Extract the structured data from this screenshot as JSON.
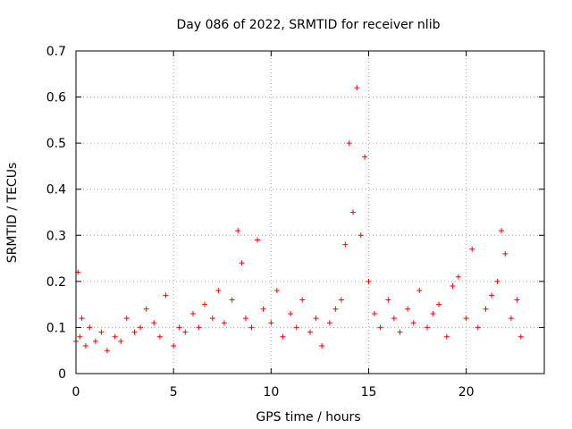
{
  "chart_data": {
    "type": "scatter",
    "title": "Day 086 of 2022, SRMTID for receiver nlib",
    "xlabel": "GPS time / hours",
    "ylabel": "SRMTID / TECUs",
    "xlim": [
      0,
      24
    ],
    "ylim": [
      0,
      0.7
    ],
    "xticks": [
      0,
      5,
      10,
      15,
      20
    ],
    "yticks": [
      0,
      0.1,
      0.2,
      0.3,
      0.4,
      0.5,
      0.6,
      0.7
    ],
    "xtick_labels": [
      "0",
      "5",
      "10",
      "15",
      "20"
    ],
    "ytick_labels": [
      "0",
      "0.1",
      "0.2",
      "0.3",
      "0.4",
      "0.5",
      "0.6",
      "0.7"
    ],
    "grid": true,
    "marker": "+",
    "color": "#ff0000",
    "series": [
      {
        "name": "SRMTID",
        "x": [
          0.0,
          0.1,
          0.2,
          0.3,
          0.5,
          0.7,
          1.0,
          1.3,
          1.6,
          2.0,
          2.3,
          2.6,
          3.0,
          3.3,
          3.6,
          4.0,
          4.3,
          4.6,
          5.0,
          5.3,
          5.6,
          6.0,
          6.3,
          6.6,
          7.0,
          7.3,
          7.6,
          8.0,
          8.3,
          8.5,
          8.7,
          9.0,
          9.3,
          9.6,
          10.0,
          10.3,
          10.6,
          11.0,
          11.3,
          11.6,
          12.0,
          12.3,
          12.6,
          13.0,
          13.3,
          13.6,
          13.8,
          14.0,
          14.2,
          14.4,
          14.6,
          14.8,
          15.0,
          15.3,
          15.6,
          16.0,
          16.3,
          16.6,
          17.0,
          17.3,
          17.6,
          18.0,
          18.3,
          18.6,
          19.0,
          19.3,
          19.6,
          20.0,
          20.3,
          20.6,
          21.0,
          21.3,
          21.6,
          21.8,
          22.0,
          22.3,
          22.6,
          22.8
        ],
        "y": [
          0.07,
          0.22,
          0.08,
          0.12,
          0.06,
          0.1,
          0.07,
          0.09,
          0.05,
          0.08,
          0.07,
          0.12,
          0.09,
          0.1,
          0.14,
          0.11,
          0.08,
          0.17,
          0.06,
          0.1,
          0.09,
          0.13,
          0.1,
          0.15,
          0.12,
          0.18,
          0.11,
          0.16,
          0.31,
          0.24,
          0.12,
          0.1,
          0.29,
          0.14,
          0.11,
          0.18,
          0.08,
          0.13,
          0.1,
          0.16,
          0.09,
          0.12,
          0.06,
          0.11,
          0.14,
          0.16,
          0.28,
          0.5,
          0.35,
          0.62,
          0.3,
          0.47,
          0.2,
          0.13,
          0.1,
          0.16,
          0.12,
          0.09,
          0.14,
          0.11,
          0.18,
          0.1,
          0.13,
          0.15,
          0.08,
          0.19,
          0.21,
          0.12,
          0.27,
          0.1,
          0.14,
          0.17,
          0.2,
          0.31,
          0.26,
          0.12,
          0.16,
          0.08
        ]
      }
    ]
  }
}
